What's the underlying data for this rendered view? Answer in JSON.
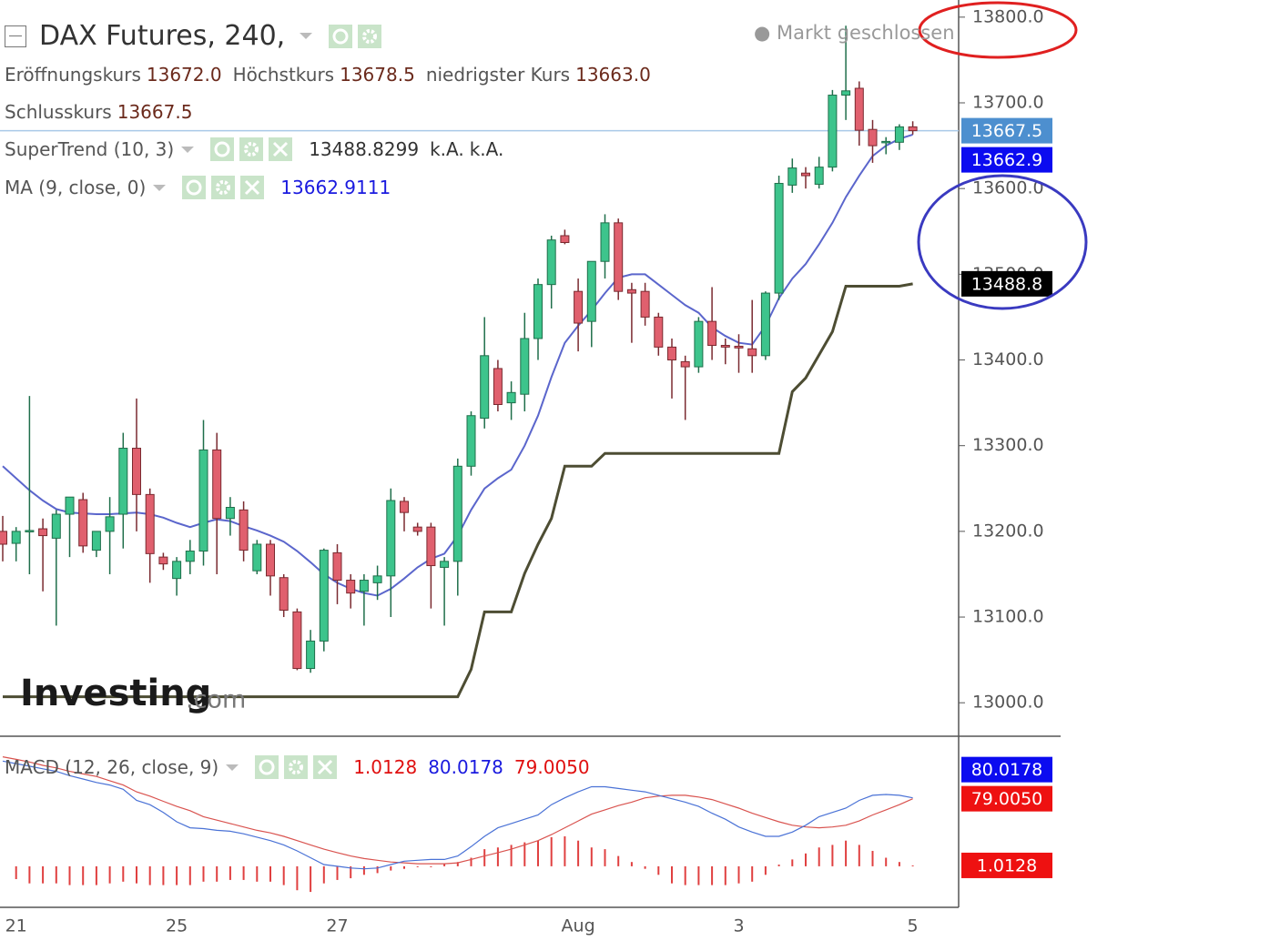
{
  "chart_data": {
    "type": "candlestick",
    "title": "DAX Futures, 240,",
    "status": "Markt geschlossen",
    "watermark": [
      "Investing",
      ".com"
    ],
    "ohlc_legend": [
      {
        "label": "Eröffnungskurs",
        "value": "13672.0"
      },
      {
        "label": "Höchstkurs",
        "value": "13678.5"
      },
      {
        "label": "niedrigster Kurs",
        "value": "13663.0"
      },
      {
        "label": "Schlusskurs",
        "value": "13667.5"
      }
    ],
    "categories": [
      null,
      "21",
      null,
      null,
      null,
      null,
      null,
      null,
      null,
      null,
      null,
      null,
      null,
      "25",
      null,
      null,
      null,
      null,
      null,
      null,
      null,
      null,
      null,
      null,
      null,
      "27",
      null,
      null,
      null,
      null,
      null,
      null,
      null,
      null,
      null,
      null,
      null,
      null,
      null,
      null,
      null,
      null,
      null,
      "Aug",
      null,
      null,
      null,
      null,
      null,
      null,
      null,
      null,
      null,
      null,
      null,
      "3",
      null,
      null,
      null,
      null,
      null,
      null,
      null,
      null,
      null,
      null,
      null,
      null,
      "5"
    ],
    "open": [
      13200,
      13186,
      13200,
      13203,
      13192,
      13220,
      13237,
      13178,
      13200,
      13220,
      13297,
      13243,
      13170,
      13145,
      13165,
      13177,
      13295,
      13215,
      13225,
      13154,
      13185,
      13146,
      13106,
      13040,
      13072,
      13175,
      13143,
      13130,
      13140,
      13148,
      13235,
      13205,
      13205,
      13158,
      13165,
      13276,
      13332,
      13390,
      13350,
      13360,
      13425,
      13488,
      13545,
      13480,
      13445,
      13515,
      13560,
      13482,
      13480,
      13450,
      13415,
      13398,
      13392,
      13445,
      13417,
      13416,
      13413,
      13405,
      13478,
      13604,
      13618,
      13605,
      13625,
      13709,
      13717,
      13669,
      13655,
      13654,
      13672
    ],
    "high": [
      13218,
      13205,
      13358,
      13215,
      13225,
      13240,
      13245,
      13200,
      13240,
      13315,
      13355,
      13250,
      13175,
      13170,
      13190,
      13330,
      13315,
      13240,
      13235,
      13190,
      13190,
      13150,
      13110,
      13085,
      13180,
      13185,
      13150,
      13150,
      13160,
      13250,
      13240,
      13210,
      13210,
      13170,
      13285,
      13340,
      13450,
      13400,
      13375,
      13455,
      13495,
      13545,
      13552,
      13495,
      13515,
      13570,
      13565,
      13490,
      13490,
      13455,
      13425,
      13405,
      13450,
      13485,
      13425,
      13430,
      13470,
      13480,
      13615,
      13635,
      13625,
      13637,
      13715,
      13790,
      13725,
      13680,
      13660,
      13675,
      13678.5
    ],
    "low": [
      13165,
      13165,
      13150,
      13130,
      13090,
      13170,
      13175,
      13170,
      13150,
      13180,
      13200,
      13140,
      13155,
      13125,
      13150,
      13160,
      13150,
      13195,
      13165,
      13150,
      13125,
      13100,
      13038,
      13035,
      13060,
      13115,
      13110,
      13090,
      13120,
      13100,
      13200,
      13195,
      13110,
      13090,
      13125,
      13265,
      13320,
      13340,
      13330,
      13340,
      13400,
      13460,
      13535,
      13410,
      13415,
      13495,
      13470,
      13420,
      13440,
      13405,
      13355,
      13330,
      13385,
      13400,
      13395,
      13385,
      13385,
      13400,
      13470,
      13595,
      13600,
      13600,
      13620,
      13680,
      13650,
      13630,
      13640,
      13645,
      13663
    ],
    "close": [
      13185,
      13200,
      13201,
      13195,
      13220,
      13240,
      13183,
      13200,
      13217,
      13297,
      13243,
      13174,
      13162,
      13165,
      13177,
      13295,
      13215,
      13228,
      13178,
      13185,
      13148,
      13108,
      13040,
      13072,
      13178,
      13143,
      13128,
      13143,
      13148,
      13236,
      13222,
      13200,
      13160,
      13165,
      13276,
      13335,
      13405,
      13348,
      13362,
      13425,
      13488,
      13540,
      13537,
      13443,
      13515,
      13560,
      13480,
      13478,
      13450,
      13415,
      13400,
      13392,
      13445,
      13417,
      13415,
      13414,
      13405,
      13478,
      13606,
      13624,
      13615,
      13625,
      13709,
      13714,
      13668,
      13650,
      13655,
      13672,
      13667.5
    ],
    "up_color": "#3dc48c",
    "down_color": "#e0606e",
    "last_price_label": "13667.5",
    "last_price_color": "#4d8fcf",
    "ylim": [
      12962,
      13820
    ],
    "yticks": [
      {
        "value": 13000,
        "label": "13000.0"
      },
      {
        "value": 13100,
        "label": "13100.0"
      },
      {
        "value": 13200,
        "label": "13200.0"
      },
      {
        "value": 13300,
        "label": "13300.0"
      },
      {
        "value": 13400,
        "label": "13400.0"
      },
      {
        "value": 13500,
        "label": "13500.0"
      },
      {
        "value": 13600,
        "label": "13600.0"
      },
      {
        "value": 13700,
        "label": "13700.0"
      },
      {
        "value": 13800,
        "label": "13800.0"
      }
    ],
    "overlays": [
      {
        "name": "SuperTrend (10, 3)",
        "legend_values": [
          "13488.8299",
          "k.A.",
          "k.A."
        ],
        "color": "#4d4d33",
        "tag_color": "#000000",
        "value_label": "13488.8",
        "values": [
          13007,
          13007,
          13007,
          13007,
          13007,
          13007,
          13007,
          13007,
          13007,
          13007,
          13007,
          13007,
          13007,
          13007,
          13007,
          13007,
          13007,
          13007,
          13007,
          13007,
          13007,
          13007,
          13007,
          13007,
          13007,
          13007,
          13007,
          13007,
          13007,
          13007,
          13007,
          13007,
          13007,
          13007,
          13007,
          13039,
          13106,
          13106,
          13106,
          13151,
          13185,
          13215,
          13276,
          13276,
          13276,
          13291,
          13291,
          13291,
          13291,
          13291,
          13291,
          13291,
          13291,
          13291,
          13291,
          13291,
          13291,
          13291,
          13291,
          13363,
          13379,
          13406,
          13433,
          13486,
          13486,
          13486,
          13486,
          13486,
          13488.8299
        ]
      },
      {
        "name": "MA (9, close, 0)",
        "legend_values": [
          "13662.9111"
        ],
        "color": "#5b66cc",
        "tag_color": "#0b0bf0",
        "value_label": "13662.9",
        "values": [
          13276,
          13262,
          13248,
          13236,
          13226,
          13222,
          13221,
          13220,
          13220,
          13221,
          13222,
          13220,
          13216,
          13210,
          13205,
          13210,
          13214,
          13212,
          13206,
          13201,
          13195,
          13188,
          13177,
          13164,
          13150,
          13140,
          13133,
          13128,
          13125,
          13133,
          13145,
          13158,
          13168,
          13174,
          13195,
          13225,
          13250,
          13262,
          13272,
          13300,
          13335,
          13380,
          13420,
          13440,
          13458,
          13478,
          13496,
          13500,
          13500,
          13488,
          13476,
          13464,
          13455,
          13438,
          13428,
          13420,
          13418,
          13440,
          13472,
          13495,
          13512,
          13535,
          13560,
          13590,
          13615,
          13638,
          13650,
          13658,
          13662.9111
        ]
      }
    ],
    "macd": {
      "name": "MACD (12, 26, close, 9)",
      "legend_values": [
        "1.0128",
        "80.0178",
        "79.0050"
      ],
      "ylim": [
        -48,
        151
      ],
      "histogram": {
        "color": "#e04040",
        "tag_color": "#ee1111",
        "value_label": "1.0128",
        "values": [
          null,
          -15,
          -20,
          -20,
          -20,
          -22,
          -22,
          -22,
          -20,
          -18,
          -20,
          -22,
          -22,
          -22,
          -22,
          -18,
          -18,
          -16,
          -16,
          -18,
          -18,
          -22,
          -28,
          -30,
          -20,
          -16,
          -14,
          -10,
          -8,
          -5,
          -3,
          -1,
          0,
          3,
          5,
          10,
          20,
          22,
          25,
          28,
          30,
          34,
          35,
          30,
          22,
          20,
          12,
          5,
          -3,
          -10,
          -20,
          -22,
          -22,
          -22,
          -22,
          -20,
          -18,
          -10,
          2,
          8,
          15,
          22,
          25,
          30,
          25,
          18,
          10,
          5,
          1.0128
        ]
      },
      "signal": {
        "color": "#d9534f",
        "tag_color": "#ee1111",
        "value_label": "79.0050",
        "values": [
          128,
          125,
          122,
          118,
          115,
          111,
          108,
          105,
          100,
          95,
          87,
          82,
          76,
          70,
          65,
          58,
          54,
          50,
          46,
          42,
          39,
          35,
          30,
          25,
          20,
          16,
          12,
          9,
          7,
          5,
          4,
          3,
          3,
          3,
          4,
          8,
          12,
          16,
          20,
          25,
          30,
          37,
          45,
          53,
          61,
          66,
          71,
          75,
          80,
          82,
          83,
          83,
          81,
          78,
          73,
          68,
          62,
          57,
          52,
          48,
          46,
          45,
          46,
          48,
          53,
          60,
          66,
          72,
          79.005
        ]
      },
      "line": {
        "color": "#4a72d6",
        "tag_color": "#0b0bf0",
        "value_label": "80.0178",
        "values": [
          123,
          120,
          117,
          114,
          111,
          106,
          102,
          98,
          95,
          90,
          77,
          72,
          63,
          52,
          45,
          44,
          42,
          41,
          38,
          34,
          30,
          25,
          18,
          10,
          2,
          0,
          -2,
          -3,
          -2,
          2,
          6,
          7,
          8,
          8,
          12,
          23,
          35,
          45,
          50,
          55,
          60,
          72,
          80,
          87,
          93,
          93,
          91,
          89,
          87,
          83,
          79,
          75,
          70,
          62,
          55,
          46,
          40,
          35,
          35,
          40,
          48,
          58,
          63,
          68,
          77,
          83,
          84,
          83,
          80.0178
        ]
      }
    }
  }
}
